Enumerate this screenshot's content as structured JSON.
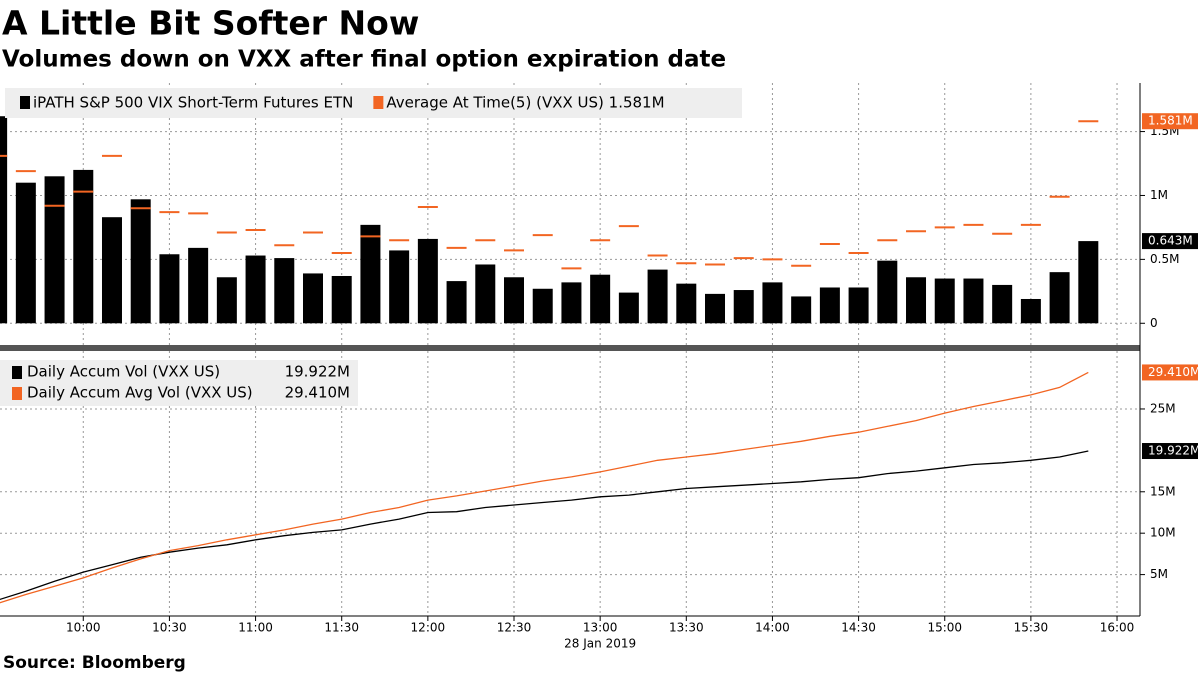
{
  "title": "A Little Bit Softer Now",
  "subtitle": "Volumes down on VXX after final option expiration date",
  "source": "Source: Bloomberg",
  "chart_data": [
    {
      "type": "bar",
      "x": [
        "09:30",
        "09:40",
        "09:50",
        "10:00",
        "10:10",
        "10:20",
        "10:30",
        "10:40",
        "10:50",
        "11:00",
        "11:10",
        "11:20",
        "11:30",
        "11:40",
        "11:50",
        "12:00",
        "12:10",
        "12:20",
        "12:30",
        "12:40",
        "12:50",
        "13:00",
        "13:10",
        "13:20",
        "13:30",
        "13:40",
        "13:50",
        "14:00",
        "14:10",
        "14:20",
        "14:30",
        "14:40",
        "14:50",
        "15:00",
        "15:10",
        "15:20",
        "15:30",
        "15:40",
        "15:50"
      ],
      "xlim": [
        "09:31",
        "16:08"
      ],
      "ylim": [
        -0.17,
        1.88
      ],
      "yticks": [
        {
          "value": 0,
          "label": "0"
        },
        {
          "value": 0.5,
          "label": "0.5M"
        },
        {
          "value": 1,
          "label": "1M"
        },
        {
          "value": 1.5,
          "label": "1.5M"
        }
      ],
      "grid": true,
      "series": [
        {
          "name": "iPATH S&P 500 VIX Short-Term Futures ETN",
          "color": "#000000",
          "style": "bar",
          "end_label": "0.643M",
          "values": [
            1.62,
            1.1,
            1.15,
            1.2,
            0.83,
            0.97,
            0.54,
            0.59,
            0.36,
            0.53,
            0.51,
            0.39,
            0.37,
            0.77,
            0.57,
            0.66,
            0.33,
            0.46,
            0.36,
            0.27,
            0.32,
            0.38,
            0.24,
            0.42,
            0.31,
            0.23,
            0.26,
            0.32,
            0.21,
            0.28,
            0.28,
            0.49,
            0.36,
            0.35,
            0.35,
            0.3,
            0.19,
            0.4,
            0.643
          ]
        },
        {
          "name": "Average At Time(5) (VXX US) 1.581M",
          "color": "#f26522",
          "style": "dash",
          "end_label": "1.581M",
          "values": [
            1.31,
            1.19,
            0.92,
            1.03,
            1.31,
            0.9,
            0.87,
            0.86,
            0.71,
            0.73,
            0.61,
            0.71,
            0.55,
            0.68,
            0.65,
            0.91,
            0.59,
            0.65,
            0.57,
            0.69,
            0.43,
            0.65,
            0.76,
            0.53,
            0.47,
            0.46,
            0.51,
            0.5,
            0.45,
            0.62,
            0.55,
            0.65,
            0.72,
            0.75,
            0.77,
            0.7,
            0.77,
            0.99,
            1.581
          ]
        }
      ]
    },
    {
      "type": "line",
      "x": [
        "09:30",
        "09:40",
        "09:50",
        "10:00",
        "10:10",
        "10:20",
        "10:30",
        "10:40",
        "10:50",
        "11:00",
        "11:10",
        "11:20",
        "11:30",
        "11:40",
        "11:50",
        "12:00",
        "12:10",
        "12:20",
        "12:30",
        "12:40",
        "12:50",
        "13:00",
        "13:10",
        "13:20",
        "13:30",
        "13:40",
        "13:50",
        "14:00",
        "14:10",
        "14:20",
        "14:30",
        "14:40",
        "14:50",
        "15:00",
        "15:10",
        "15:20",
        "15:30",
        "15:40",
        "15:50"
      ],
      "xlim": [
        "09:31",
        "16:08"
      ],
      "ylim": [
        0,
        32
      ],
      "xticks": [
        "10:00",
        "10:30",
        "11:00",
        "11:30",
        "12:00",
        "12:30",
        "13:00",
        "13:30",
        "14:00",
        "14:30",
        "15:00",
        "15:30",
        "16:00"
      ],
      "xlabel": "28 Jan 2019",
      "yticks": [
        {
          "value": 5,
          "label": "5M"
        },
        {
          "value": 10,
          "label": "10M"
        },
        {
          "value": 15,
          "label": "15M"
        },
        {
          "value": 25,
          "label": "25M"
        }
      ],
      "grid": true,
      "series": [
        {
          "name": "Daily Accum Vol (VXX US)",
          "legend_value": "19.922M",
          "color": "#000000",
          "end_label": "19.922M",
          "values": [
            1.9,
            3.0,
            4.2,
            5.3,
            6.2,
            7.1,
            7.7,
            8.2,
            8.6,
            9.2,
            9.7,
            10.1,
            10.4,
            11.1,
            11.7,
            12.5,
            12.6,
            13.1,
            13.4,
            13.7,
            14.0,
            14.4,
            14.6,
            15.0,
            15.4,
            15.6,
            15.8,
            16.0,
            16.2,
            16.5,
            16.7,
            17.2,
            17.5,
            17.9,
            18.3,
            18.5,
            18.8,
            19.2,
            19.922
          ]
        },
        {
          "name": "Daily Accum Avg Vol (VXX US)",
          "legend_value": "29.410M",
          "color": "#f26522",
          "end_label": "29.410M",
          "values": [
            1.5,
            2.6,
            3.6,
            4.6,
            5.8,
            6.9,
            7.9,
            8.5,
            9.2,
            9.8,
            10.4,
            11.1,
            11.7,
            12.5,
            13.1,
            14.0,
            14.5,
            15.1,
            15.7,
            16.3,
            16.8,
            17.4,
            18.1,
            18.8,
            19.2,
            19.6,
            20.1,
            20.6,
            21.1,
            21.7,
            22.2,
            22.9,
            23.6,
            24.5,
            25.3,
            26.0,
            26.7,
            27.6,
            29.41
          ]
        }
      ]
    }
  ]
}
